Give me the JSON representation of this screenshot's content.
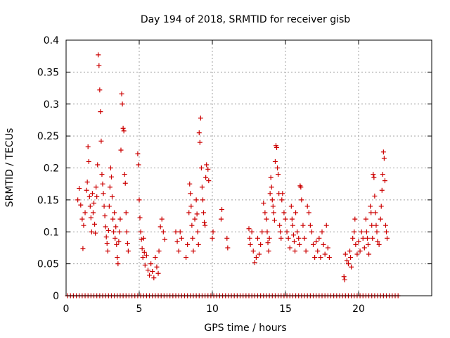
{
  "chart_data": {
    "type": "scatter",
    "title": "Day 194 of 2018, SRMTID for receiver gisb",
    "xlabel": "GPS time / hours",
    "ylabel": "SRMTID / TECUs",
    "xlim": [
      0,
      25
    ],
    "ylim": [
      0,
      0.4
    ],
    "x_ticks": [
      0,
      5,
      10,
      15,
      20
    ],
    "x_tick_labels": [
      "0",
      "5",
      "10",
      "15",
      "20"
    ],
    "y_ticks": [
      0,
      0.05,
      0.1,
      0.15,
      0.2,
      0.25,
      0.3,
      0.35,
      0.4
    ],
    "y_tick_labels": [
      "0",
      "0.05",
      "0.1",
      "0.15",
      "0.2",
      "0.25",
      "0.3",
      "0.35",
      "0.4"
    ],
    "grid": true,
    "marker": "+",
    "series": [
      {
        "name": "SRMTID",
        "color": "#cc0000",
        "points": [
          [
            0.8,
            0.15
          ],
          [
            0.9,
            0.168
          ],
          [
            1.0,
            0.142
          ],
          [
            1.1,
            0.12
          ],
          [
            1.15,
            0.074
          ],
          [
            1.2,
            0.11
          ],
          [
            1.3,
            0.13
          ],
          [
            1.4,
            0.165
          ],
          [
            1.45,
            0.178
          ],
          [
            1.5,
            0.233
          ],
          [
            1.55,
            0.21
          ],
          [
            1.6,
            0.155
          ],
          [
            1.65,
            0.14
          ],
          [
            1.7,
            0.122
          ],
          [
            1.75,
            0.1
          ],
          [
            1.8,
            0.16
          ],
          [
            1.85,
            0.13
          ],
          [
            1.9,
            0.145
          ],
          [
            1.95,
            0.112
          ],
          [
            2.0,
            0.098
          ],
          [
            2.05,
            0.17
          ],
          [
            2.1,
            0.155
          ],
          [
            2.15,
            0.205
          ],
          [
            2.2,
            0.377
          ],
          [
            2.25,
            0.36
          ],
          [
            2.3,
            0.322
          ],
          [
            2.35,
            0.288
          ],
          [
            2.4,
            0.242
          ],
          [
            2.45,
            0.19
          ],
          [
            2.5,
            0.175
          ],
          [
            2.55,
            0.16
          ],
          [
            2.6,
            0.14
          ],
          [
            2.65,
            0.125
          ],
          [
            2.7,
            0.108
          ],
          [
            2.75,
            0.092
          ],
          [
            2.8,
            0.082
          ],
          [
            2.85,
            0.07
          ],
          [
            2.9,
            0.102
          ],
          [
            2.95,
            0.14
          ],
          [
            3.0,
            0.17
          ],
          [
            3.05,
            0.2
          ],
          [
            3.1,
            0.186
          ],
          [
            3.15,
            0.155
          ],
          [
            3.2,
            0.12
          ],
          [
            3.25,
            0.1
          ],
          [
            3.3,
            0.13
          ],
          [
            3.35,
            0.09
          ],
          [
            3.4,
            0.108
          ],
          [
            3.45,
            0.08
          ],
          [
            3.5,
            0.06
          ],
          [
            3.55,
            0.05
          ],
          [
            3.6,
            0.085
          ],
          [
            3.65,
            0.1
          ],
          [
            3.7,
            0.12
          ],
          [
            3.75,
            0.228
          ],
          [
            3.8,
            0.316
          ],
          [
            3.85,
            0.3
          ],
          [
            3.9,
            0.262
          ],
          [
            3.95,
            0.258
          ],
          [
            4.0,
            0.19
          ],
          [
            4.05,
            0.176
          ],
          [
            4.1,
            0.13
          ],
          [
            4.15,
            0.1
          ],
          [
            4.2,
            0.082
          ],
          [
            4.25,
            0.07
          ],
          [
            4.9,
            0.222
          ],
          [
            4.95,
            0.205
          ],
          [
            5.0,
            0.15
          ],
          [
            5.05,
            0.122
          ],
          [
            5.1,
            0.1
          ],
          [
            5.15,
            0.088
          ],
          [
            5.2,
            0.074
          ],
          [
            5.25,
            0.06
          ],
          [
            5.3,
            0.09
          ],
          [
            5.35,
            0.068
          ],
          [
            5.4,
            0.048
          ],
          [
            5.5,
            0.063
          ],
          [
            5.6,
            0.04
          ],
          [
            5.7,
            0.032
          ],
          [
            5.8,
            0.05
          ],
          [
            5.9,
            0.038
          ],
          [
            6.0,
            0.028
          ],
          [
            6.1,
            0.06
          ],
          [
            6.2,
            0.045
          ],
          [
            6.3,
            0.035
          ],
          [
            6.35,
            0.07
          ],
          [
            6.45,
            0.108
          ],
          [
            6.55,
            0.12
          ],
          [
            6.65,
            0.1
          ],
          [
            6.75,
            0.088
          ],
          [
            7.5,
            0.1
          ],
          [
            7.6,
            0.085
          ],
          [
            7.7,
            0.07
          ],
          [
            7.8,
            0.1
          ],
          [
            7.9,
            0.09
          ],
          [
            8.2,
            0.06
          ],
          [
            8.3,
            0.08
          ],
          [
            8.4,
            0.13
          ],
          [
            8.45,
            0.175
          ],
          [
            8.5,
            0.16
          ],
          [
            8.55,
            0.14
          ],
          [
            8.6,
            0.11
          ],
          [
            8.65,
            0.09
          ],
          [
            8.7,
            0.07
          ],
          [
            8.8,
            0.12
          ],
          [
            8.9,
            0.15
          ],
          [
            8.95,
            0.128
          ],
          [
            9.0,
            0.1
          ],
          [
            9.05,
            0.08
          ],
          [
            9.1,
            0.255
          ],
          [
            9.15,
            0.24
          ],
          [
            9.2,
            0.278
          ],
          [
            9.25,
            0.2
          ],
          [
            9.3,
            0.17
          ],
          [
            9.35,
            0.15
          ],
          [
            9.4,
            0.13
          ],
          [
            9.45,
            0.115
          ],
          [
            9.5,
            0.11
          ],
          [
            9.55,
            0.185
          ],
          [
            9.6,
            0.205
          ],
          [
            9.7,
            0.198
          ],
          [
            9.75,
            0.18
          ],
          [
            10.0,
            0.09
          ],
          [
            10.05,
            0.1
          ],
          [
            10.6,
            0.12
          ],
          [
            10.65,
            0.135
          ],
          [
            11.0,
            0.09
          ],
          [
            11.05,
            0.075
          ],
          [
            12.5,
            0.105
          ],
          [
            12.55,
            0.09
          ],
          [
            12.6,
            0.08
          ],
          [
            12.7,
            0.1
          ],
          [
            12.8,
            0.07
          ],
          [
            12.9,
            0.052
          ],
          [
            13.0,
            0.06
          ],
          [
            13.1,
            0.09
          ],
          [
            13.2,
            0.065
          ],
          [
            13.3,
            0.08
          ],
          [
            13.4,
            0.1
          ],
          [
            13.5,
            0.145
          ],
          [
            13.6,
            0.13
          ],
          [
            13.7,
            0.12
          ],
          [
            13.75,
            0.1
          ],
          [
            13.8,
            0.083
          ],
          [
            13.85,
            0.07
          ],
          [
            13.9,
            0.09
          ],
          [
            13.95,
            0.16
          ],
          [
            14.0,
            0.185
          ],
          [
            14.05,
            0.17
          ],
          [
            14.1,
            0.15
          ],
          [
            14.15,
            0.14
          ],
          [
            14.2,
            0.13
          ],
          [
            14.25,
            0.118
          ],
          [
            14.3,
            0.21
          ],
          [
            14.35,
            0.235
          ],
          [
            14.4,
            0.232
          ],
          [
            14.45,
            0.2
          ],
          [
            14.5,
            0.19
          ],
          [
            14.55,
            0.16
          ],
          [
            14.6,
            0.11
          ],
          [
            14.65,
            0.1
          ],
          [
            14.7,
            0.09
          ],
          [
            14.75,
            0.15
          ],
          [
            14.8,
            0.16
          ],
          [
            14.9,
            0.13
          ],
          [
            15.0,
            0.12
          ],
          [
            15.1,
            0.1
          ],
          [
            15.2,
            0.09
          ],
          [
            15.3,
            0.075
          ],
          [
            15.4,
            0.14
          ],
          [
            15.45,
            0.12
          ],
          [
            15.5,
            0.11
          ],
          [
            15.55,
            0.095
          ],
          [
            15.6,
            0.085
          ],
          [
            15.65,
            0.07
          ],
          [
            15.7,
            0.13
          ],
          [
            15.8,
            0.1
          ],
          [
            15.9,
            0.09
          ],
          [
            15.95,
            0.08
          ],
          [
            16.0,
            0.172
          ],
          [
            16.05,
            0.17
          ],
          [
            16.1,
            0.15
          ],
          [
            16.2,
            0.11
          ],
          [
            16.3,
            0.09
          ],
          [
            16.4,
            0.07
          ],
          [
            16.5,
            0.14
          ],
          [
            16.6,
            0.13
          ],
          [
            16.7,
            0.11
          ],
          [
            16.8,
            0.1
          ],
          [
            16.9,
            0.08
          ],
          [
            17.0,
            0.06
          ],
          [
            17.1,
            0.085
          ],
          [
            17.2,
            0.07
          ],
          [
            17.3,
            0.09
          ],
          [
            17.4,
            0.06
          ],
          [
            17.5,
            0.1
          ],
          [
            17.6,
            0.08
          ],
          [
            17.7,
            0.065
          ],
          [
            17.8,
            0.11
          ],
          [
            17.9,
            0.075
          ],
          [
            18.0,
            0.06
          ],
          [
            19.0,
            0.03
          ],
          [
            19.05,
            0.025
          ],
          [
            19.1,
            0.065
          ],
          [
            19.2,
            0.055
          ],
          [
            19.3,
            0.05
          ],
          [
            19.4,
            0.07
          ],
          [
            19.45,
            0.06
          ],
          [
            19.5,
            0.045
          ],
          [
            19.6,
            0.09
          ],
          [
            19.7,
            0.1
          ],
          [
            19.75,
            0.12
          ],
          [
            19.8,
            0.08
          ],
          [
            19.9,
            0.065
          ],
          [
            20.0,
            0.085
          ],
          [
            20.1,
            0.07
          ],
          [
            20.2,
            0.1
          ],
          [
            20.3,
            0.09
          ],
          [
            20.4,
            0.075
          ],
          [
            20.5,
            0.12
          ],
          [
            20.55,
            0.1
          ],
          [
            20.6,
            0.09
          ],
          [
            20.65,
            0.08
          ],
          [
            20.7,
            0.065
          ],
          [
            20.8,
            0.14
          ],
          [
            20.85,
            0.13
          ],
          [
            20.9,
            0.11
          ],
          [
            20.95,
            0.09
          ],
          [
            21.0,
            0.19
          ],
          [
            21.05,
            0.185
          ],
          [
            21.1,
            0.156
          ],
          [
            21.15,
            0.13
          ],
          [
            21.2,
            0.11
          ],
          [
            21.25,
            0.1
          ],
          [
            21.3,
            0.085
          ],
          [
            21.4,
            0.08
          ],
          [
            21.5,
            0.12
          ],
          [
            21.55,
            0.14
          ],
          [
            21.6,
            0.165
          ],
          [
            21.65,
            0.19
          ],
          [
            21.7,
            0.225
          ],
          [
            21.75,
            0.215
          ],
          [
            21.8,
            0.18
          ],
          [
            21.85,
            0.11
          ],
          [
            21.9,
            0.1
          ],
          [
            21.95,
            0.09
          ]
        ],
        "zero_x": [
          0.1,
          0.3,
          0.5,
          0.7,
          0.9,
          1.1,
          1.3,
          1.5,
          1.7,
          1.9,
          2.1,
          2.3,
          2.5,
          2.7,
          2.9,
          3.1,
          3.3,
          3.5,
          3.7,
          3.9,
          4.1,
          4.3,
          4.5,
          4.7,
          4.9,
          5.1,
          5.3,
          5.5,
          5.7,
          5.9,
          6.1,
          6.3,
          6.5,
          6.7,
          6.9,
          7.1,
          7.3,
          7.5,
          7.7,
          7.9,
          8.1,
          8.3,
          8.5,
          8.7,
          8.9,
          9.1,
          9.3,
          9.5,
          9.7,
          9.9,
          10.1,
          10.3,
          10.5,
          10.7,
          10.9,
          11.1,
          11.3,
          11.5,
          11.7,
          11.9,
          12.1,
          12.3,
          12.5,
          12.7,
          12.9,
          13.1,
          13.3,
          13.5,
          13.7,
          13.9,
          14.1,
          14.3,
          14.5,
          14.7,
          14.9,
          15.1,
          15.3,
          15.5,
          15.7,
          15.9,
          16.1,
          16.3,
          16.5,
          16.7,
          16.9,
          17.1,
          17.3,
          17.5,
          17.7,
          17.9,
          18.1,
          18.3,
          18.5,
          18.7,
          18.9,
          19.1,
          19.3,
          19.5,
          19.7,
          19.9,
          20.1,
          20.3,
          20.5,
          20.7,
          20.9,
          21.1,
          21.3,
          21.5,
          21.7,
          21.9,
          22.1,
          22.3,
          22.5,
          22.7
        ]
      }
    ]
  }
}
